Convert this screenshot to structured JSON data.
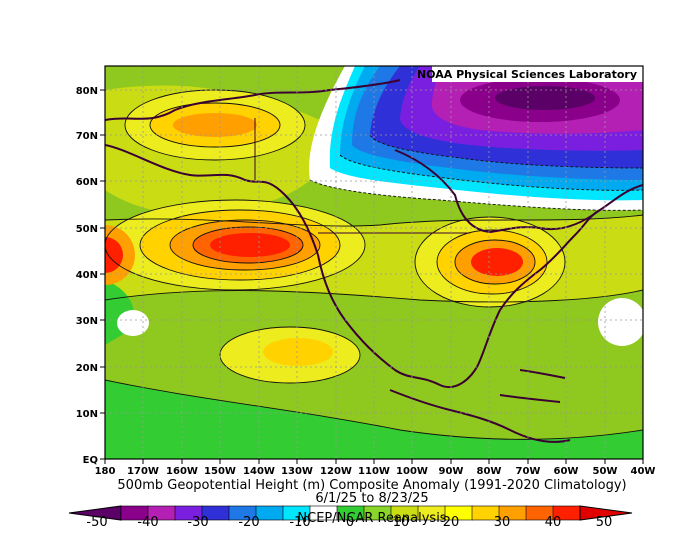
{
  "credit": "NOAA Physical Sciences Laboratory",
  "title": {
    "line1": "500mb Geopotential Height (m) Composite Anomaly (1991-2020 Climatology)",
    "line2": "6/1/25  to 8/23/25",
    "line3": "NCEP/NCAR Reanalysis"
  },
  "axes": {
    "lat_labels": [
      "80N",
      "70N",
      "60N",
      "50N",
      "40N",
      "30N",
      "20N",
      "10N",
      "EQ"
    ],
    "lon_labels": [
      "180",
      "170W",
      "160W",
      "150W",
      "140W",
      "130W",
      "120W",
      "110W",
      "100W",
      "90W",
      "80W",
      "70W",
      "60W",
      "50W",
      "40W"
    ]
  },
  "colorbar": {
    "labels": [
      "-50",
      "-40",
      "-30",
      "-20",
      "-10",
      "0",
      "10",
      "20",
      "30",
      "40",
      "50"
    ],
    "colors": [
      "#5a0066",
      "#8b008b",
      "#b41fb4",
      "#7a1fe0",
      "#3030d8",
      "#1e78e6",
      "#00aaf0",
      "#00e6ff",
      "#ffffff",
      "#33cc33",
      "#8ad52a",
      "#c9dc14",
      "#ecec1e",
      "#ffff00",
      "#ffd200",
      "#ffa000",
      "#ff6400",
      "#ff2000",
      "#e00000"
    ]
  },
  "colors": {
    "background": "#8fc81e",
    "contour": "#111111",
    "coastline": "#3b0033",
    "grid": "#999999"
  }
}
